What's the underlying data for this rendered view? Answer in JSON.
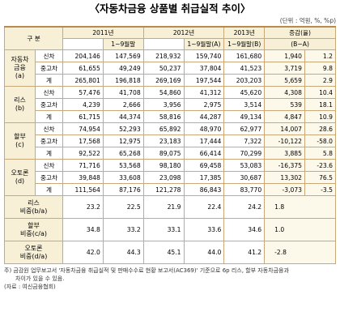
{
  "title": "〈자동차금융 상품별 취급실적 추이〉",
  "unit": "(단위 : 억원, %, %p)",
  "header": {
    "gubun": "구 분",
    "y2011": "2011년",
    "y2011_9": "1~9월말",
    "y2012": "2012년",
    "y2012_9": "1~9월말(A)",
    "y2013": "2013년",
    "y2013_9": "1~9월말(B)",
    "change": "증감(율)",
    "change_sub": "(B−A)"
  },
  "groups": [
    {
      "label_lines": [
        "자동차",
        "금융",
        "(a)"
      ],
      "rows": [
        {
          "label": "신차",
          "values": [
            "204,146",
            "147,569",
            "218,932",
            "159,740",
            "161,680",
            "1,940",
            "1.2"
          ]
        },
        {
          "label": "중고차",
          "values": [
            "61,655",
            "49,249",
            "50,237",
            "37,804",
            "41,523",
            "3,719",
            "9.8"
          ]
        },
        {
          "label": "계",
          "values": [
            "265,801",
            "196,818",
            "269,169",
            "197,544",
            "203,203",
            "5,659",
            "2.9"
          ]
        }
      ]
    },
    {
      "label_lines": [
        "리스",
        "(b)"
      ],
      "rows": [
        {
          "label": "신차",
          "values": [
            "57,476",
            "41,708",
            "54,860",
            "41,312",
            "45,620",
            "4,308",
            "10.4"
          ]
        },
        {
          "label": "중고차",
          "values": [
            "4,239",
            "2,666",
            "3,956",
            "2,975",
            "3,514",
            "539",
            "18.1"
          ]
        },
        {
          "label": "계",
          "values": [
            "61,715",
            "44,374",
            "58,816",
            "44,287",
            "49,134",
            "4,847",
            "10.9"
          ]
        }
      ]
    },
    {
      "label_lines": [
        "할부",
        "(c)"
      ],
      "rows": [
        {
          "label": "신차",
          "values": [
            "74,954",
            "52,293",
            "65,892",
            "48,970",
            "62,977",
            "14,007",
            "28.6"
          ]
        },
        {
          "label": "중고차",
          "values": [
            "17,568",
            "12,975",
            "23,183",
            "17,444",
            "7,322",
            "-10,122",
            "-58.0"
          ]
        },
        {
          "label": "계",
          "values": [
            "92,522",
            "65,268",
            "89,075",
            "66,414",
            "70,299",
            "3,885",
            "5.8"
          ]
        }
      ]
    },
    {
      "label_lines": [
        "오토론",
        "(d)"
      ],
      "rows": [
        {
          "label": "신차",
          "values": [
            "71,716",
            "53,568",
            "98,180",
            "69,458",
            "53,083",
            "-16,375",
            "-23.6"
          ]
        },
        {
          "label": "중고차",
          "values": [
            "39,848",
            "33,608",
            "23,098",
            "17,385",
            "30,687",
            "13,302",
            "76.5"
          ]
        },
        {
          "label": "계",
          "values": [
            "111,564",
            "87,176",
            "121,278",
            "86,843",
            "83,770",
            "-3,073",
            "-3.5"
          ]
        }
      ]
    }
  ],
  "ratios": [
    {
      "label_lines": [
        "리스",
        "비중(b/a)"
      ],
      "values": [
        "23.2",
        "22.5",
        "21.9",
        "22.4",
        "24.2",
        "1.8"
      ]
    },
    {
      "label_lines": [
        "할부",
        "비중(c/a)"
      ],
      "values": [
        "34.8",
        "33.2",
        "33.1",
        "33.6",
        "34.6",
        "1.0"
      ]
    },
    {
      "label_lines": [
        "오토론",
        "비중(d/a)"
      ],
      "values": [
        "42.0",
        "44.3",
        "45.1",
        "44.0",
        "41.2",
        "-2.8"
      ]
    }
  ],
  "notes": [
    "주) 금감원 업무보고서 '자동차금융 취급실적 및 판매수수료 현황 보고서(AC369)' 기준으로 6p 리스, 할부 자동차금융과",
    "차이가 있을 수 있음.",
    "(자료 : 여신금융협회)"
  ]
}
